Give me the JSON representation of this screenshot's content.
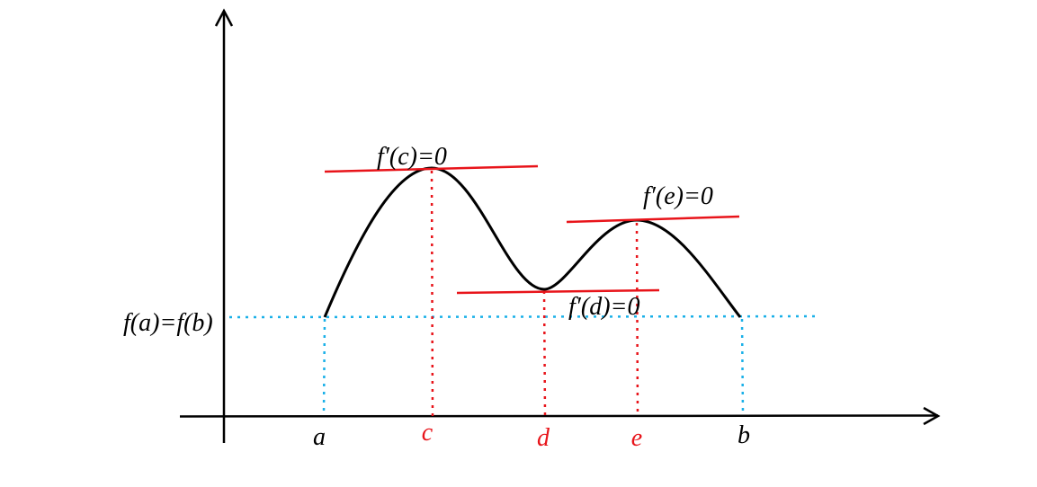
{
  "level_label": "f(a)=f(b)",
  "tangents": [
    {
      "label": "f′(c)=0"
    },
    {
      "label": "f′(d)=0"
    },
    {
      "label": "f′(e)=0"
    }
  ],
  "points": [
    {
      "label": "a"
    },
    {
      "label": "c"
    },
    {
      "label": "d"
    },
    {
      "label": "e"
    },
    {
      "label": "b"
    }
  ]
}
